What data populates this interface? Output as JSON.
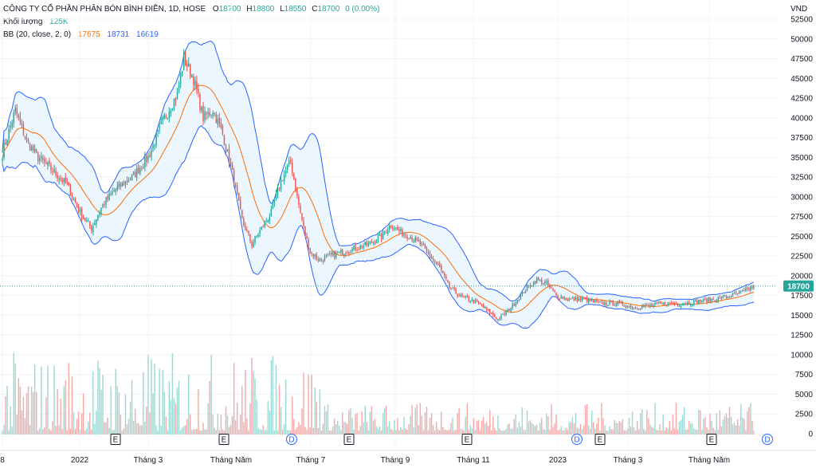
{
  "header": {
    "title": "CÔNG TY CỔ PHẦN PHÂN BÓN BÌNH ĐIỀN, 1D, HOSE",
    "o_label": "O",
    "o_value": "18700",
    "h_label": "H",
    "h_value": "18800",
    "l_label": "L",
    "l_value": "18550",
    "c_label": "C",
    "c_value": "18700",
    "change": "0 (0.00%)",
    "volume_label": "Khối lượng",
    "volume_value": "125K",
    "bb_label": "BB (20, close, 2, 0)",
    "bb_basis": "17675",
    "bb_upper": "18731",
    "bb_lower": "16619",
    "currency": "VND"
  },
  "colors": {
    "up": "#26a69a",
    "down": "#ef5350",
    "bb_basis": "#ff6d00",
    "bb_band": "#2962ff",
    "bb_fill": "#e3f2fd",
    "price_label_bg": "#26a69a",
    "last_price_line": "#26a69a",
    "vol_up": "#9fd8d2",
    "vol_down": "#f5a9a8"
  },
  "chart_data": {
    "type": "candlestick",
    "price_axis": {
      "ticks": [
        "52500",
        "50000",
        "47500",
        "45000",
        "42500",
        "40000",
        "37500",
        "35000",
        "32500",
        "30000",
        "27500",
        "25000",
        "22500",
        "20000",
        "17500",
        "15000",
        "12500",
        "10000",
        "7500",
        "5000",
        "2500",
        "0"
      ],
      "ylim": [
        0,
        52500
      ]
    },
    "time_axis": {
      "ticks": [
        "8",
        "2022",
        "Tháng 3",
        "Tháng Năm",
        "Tháng 7",
        "Tháng 9",
        "Tháng 11",
        "2023",
        "Tháng 3",
        "Tháng Năm"
      ]
    },
    "last_price": "18700",
    "events": [
      "E",
      "E",
      "D",
      "E",
      "E",
      "D",
      "E",
      "E",
      "D"
    ],
    "close_keypoints": [
      [
        0,
        35500
      ],
      [
        8,
        41000
      ],
      [
        15,
        37000
      ],
      [
        22,
        35000
      ],
      [
        30,
        33500
      ],
      [
        40,
        31500
      ],
      [
        48,
        28000
      ],
      [
        55,
        26000
      ],
      [
        62,
        29000
      ],
      [
        70,
        31000
      ],
      [
        80,
        32500
      ],
      [
        90,
        35000
      ],
      [
        100,
        40000
      ],
      [
        108,
        43000
      ],
      [
        112,
        47500
      ],
      [
        118,
        45000
      ],
      [
        124,
        40000
      ],
      [
        130,
        41000
      ],
      [
        136,
        38000
      ],
      [
        142,
        33000
      ],
      [
        148,
        27000
      ],
      [
        154,
        24000
      ],
      [
        160,
        26000
      ],
      [
        166,
        28000
      ],
      [
        172,
        32000
      ],
      [
        178,
        34500
      ],
      [
        182,
        30000
      ],
      [
        186,
        26000
      ],
      [
        190,
        23000
      ],
      [
        196,
        22000
      ],
      [
        202,
        22500
      ],
      [
        210,
        23000
      ],
      [
        218,
        23500
      ],
      [
        226,
        24000
      ],
      [
        234,
        25000
      ],
      [
        240,
        26500
      ],
      [
        246,
        25500
      ],
      [
        252,
        25000
      ],
      [
        258,
        24000
      ],
      [
        264,
        22500
      ],
      [
        270,
        21000
      ],
      [
        276,
        18500
      ],
      [
        282,
        17500
      ],
      [
        288,
        17000
      ],
      [
        294,
        16500
      ],
      [
        300,
        15500
      ],
      [
        306,
        14500
      ],
      [
        312,
        15500
      ],
      [
        318,
        17000
      ],
      [
        324,
        18500
      ],
      [
        330,
        19500
      ],
      [
        336,
        19000
      ],
      [
        342,
        17500
      ],
      [
        350,
        17000
      ],
      [
        360,
        17000
      ],
      [
        370,
        16500
      ],
      [
        380,
        16500
      ],
      [
        390,
        16000
      ],
      [
        400,
        16200
      ],
      [
        410,
        16500
      ],
      [
        420,
        16400
      ],
      [
        430,
        16800
      ],
      [
        440,
        17000
      ],
      [
        450,
        17500
      ],
      [
        458,
        18000
      ],
      [
        464,
        18700
      ]
    ],
    "bb": {
      "period": 20,
      "stddev": 2,
      "basis_last": 17675,
      "upper_last": 18731,
      "lower_last": 16619
    },
    "volume_axis_max": 12500
  }
}
